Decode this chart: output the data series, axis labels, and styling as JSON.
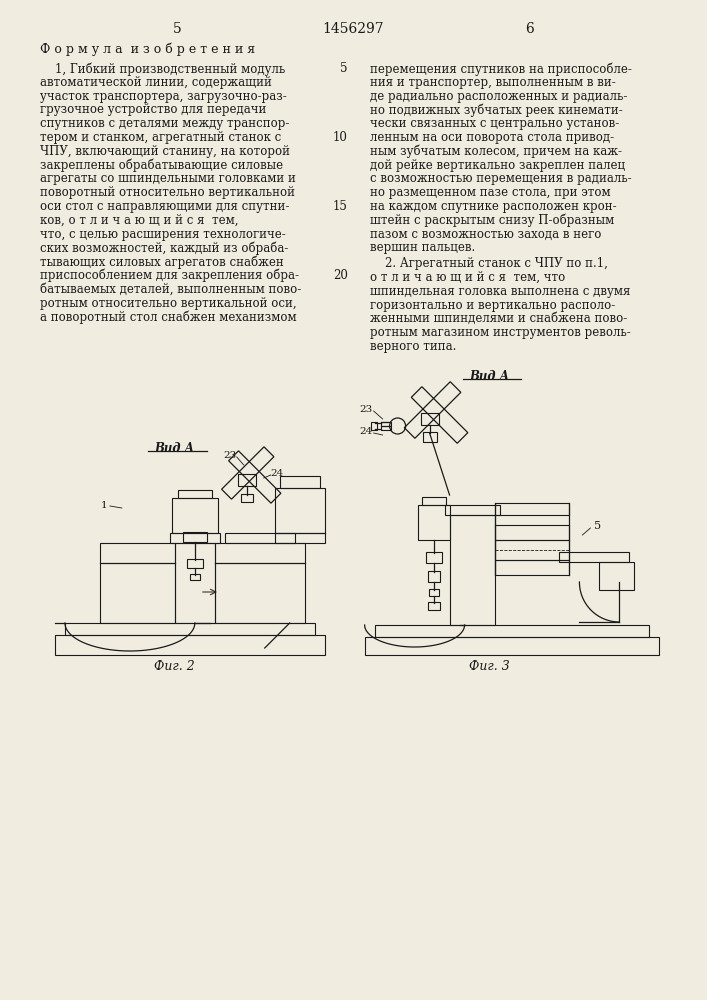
{
  "page_number_left": "5",
  "page_number_center": "1456297",
  "page_number_right": "6",
  "background_color": "#f0ece0",
  "text_color": "#1a1a1a",
  "left_header": "Ф о р м у л а  и з о б р е т е н и я",
  "left_body": "    1, Гибкий производственный модуль\nавтоматической линии, содержащий\nучасток транспортера, загрузочно-раз-\nгрузочное устройство для передачи\nспутников с деталями между транспор-\nтером и станком, агрегатный станок с\nЧПУ, включающий станину, на которой\nзакреплены обрабатывающие силовые\nагрегаты со шпиндельными головками и\nповоротный относительно вертикальной\nоси стол с направляющими для спутни-\nков, о т л и ч а ю щ и й с я  тем,\nчто, с целью расширения технологиче-\nских возможностей, каждый из обраба-\nтывающих силовых агрегатов снабжен\nприспособлением для закрепления обра-\nбатываемых деталей, выполненным пово-\nротным относительно вертикальной оси,\nа поворотный стол снабжен механизмом",
  "right_body": "перемещения спутников на приспособле-\nния и транспортер, выполненным в ви-\nде радиально расположенных и радиаль-\nно подвижных зубчатых реек кинемати-\nчески связанных с центрально установ-\nленным на оси поворота стола привод-\nным зубчатым колесом, причем на каж-\nдой рейке вертикально закреплен палец\nс возможностью перемещения в радиаль-\nно размещенном пазе стола, при этом\nна каждом спутнике расположен крон-\nштейн с раскрытым снизу П-образным\nпазом с возможностью захода в него\nвершин пальцев.",
  "right_header2": "    2. Агрегатный станок с ЧПУ по п.1,",
  "right_body2": "о т л и ч а ю щ и й с я  тем, что\nшпиндельная головка выполнена с двумя\nгоризонтально и вертикально располо-\nженными шпинделями и снабжена пово-\nротным магазином инструментов револь-\nверного типа.",
  "fig2_caption": "Фиг. 2",
  "fig3_caption": "Фиг. 3",
  "vid_a_label": "Вид А",
  "line_numbers": {
    "1": "5",
    "6": "10",
    "11": "15",
    "16": "20"
  },
  "font_size_body": 8.5,
  "font_size_header": 9.0
}
